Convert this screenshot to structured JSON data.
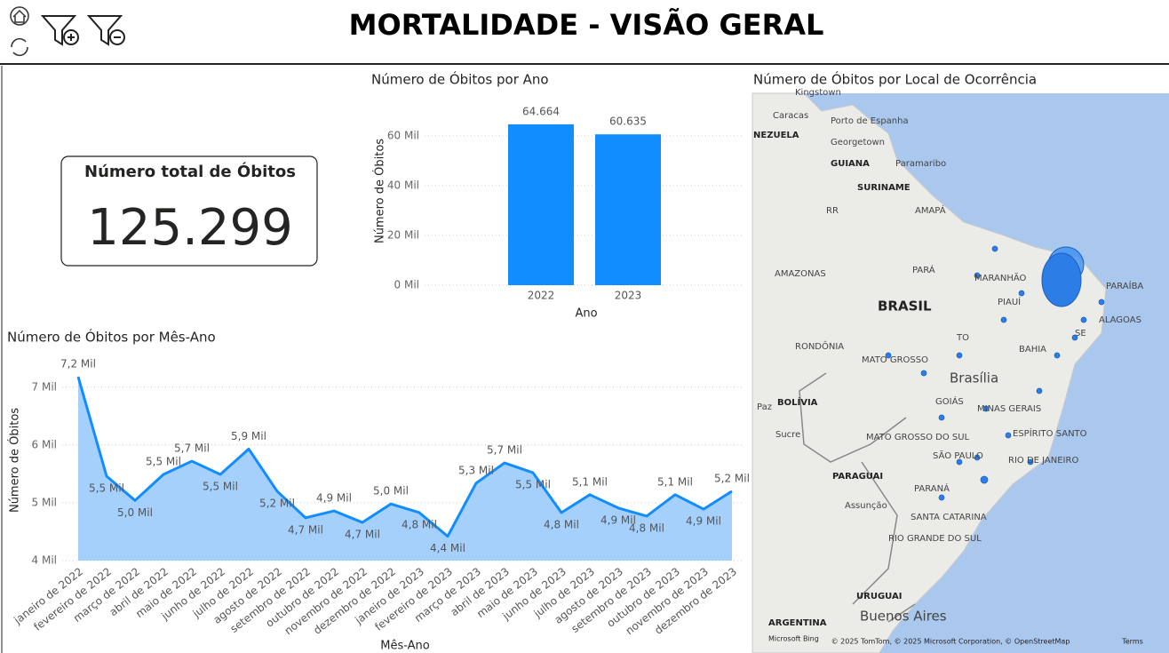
{
  "header": {
    "title": "MORTALIDADE - VISÃO GERAL"
  },
  "kpi": {
    "title": "Número total de Óbitos",
    "value": "125.299"
  },
  "chart_data": [
    {
      "type": "bar",
      "title": "Número de Óbitos por Ano",
      "x_label": "Ano",
      "y_label": "Número de Óbitos",
      "categories": [
        "2022",
        "2023"
      ],
      "values": [
        64664,
        60635
      ],
      "value_labels": [
        "64.664",
        "60.635"
      ],
      "color": "#118dff",
      "ylim": [
        0,
        70000
      ],
      "yticks": [
        {
          "value": 0,
          "label": "0 Mil"
        },
        {
          "value": 20000,
          "label": "20 Mil"
        },
        {
          "value": 40000,
          "label": "40 Mil"
        },
        {
          "value": 60000,
          "label": "60 Mil"
        }
      ],
      "grid": true
    },
    {
      "type": "line",
      "title": "Número de Óbitos por Mês-Ano",
      "x_label": "Mês-Ano",
      "y_label": "Número de Óbitos",
      "categories": [
        "janeiro de 2022",
        "fevereiro de 2022",
        "março de 2022",
        "abril de 2022",
        "maio de 2022",
        "junho de 2022",
        "julho de 2022",
        "agosto de 2022",
        "setembro de 2022",
        "outubro de 2022",
        "novembro de 2022",
        "dezembro de 2022",
        "janeiro de 2023",
        "fevereiro de 2023",
        "março de 2023",
        "abril de 2023",
        "maio de 2023",
        "junho de 2023",
        "julho de 2023",
        "agosto de 2023",
        "setembro de 2023",
        "outubro de 2023",
        "novembro de 2023",
        "dezembro de 2023"
      ],
      "values": [
        7180,
        5460,
        5040,
        5490,
        5720,
        5490,
        5930,
        5200,
        4740,
        4860,
        4660,
        4980,
        4830,
        4420,
        5340,
        5690,
        5520,
        4830,
        5140,
        4910,
        4770,
        5140,
        4890,
        5200
      ],
      "value_labels": [
        "7,2 Mil",
        "5,5 Mil",
        "5,0 Mil",
        "5,5 Mil",
        "5,7 Mil",
        "5,5 Mil",
        "5,9 Mil",
        "5,2 Mil",
        "4,7 Mil",
        "4,9 Mil",
        "4,7 Mil",
        "5,0 Mil",
        "4,8 Mil",
        "4,4 Mil",
        "5,3 Mil",
        "5,7 Mil",
        "5,5 Mil",
        "4,8 Mil",
        "5,1 Mil",
        "4,9 Mil",
        "4,8 Mil",
        "5,1 Mil",
        "4,9 Mil",
        "5,2 Mil"
      ],
      "color": "#118dff",
      "fill": "#a4d0fb",
      "ylim": [
        4000,
        7350
      ],
      "yticks": [
        {
          "value": 4000,
          "label": "4 Mil"
        },
        {
          "value": 5000,
          "label": "5 Mil"
        },
        {
          "value": 6000,
          "label": "6 Mil"
        },
        {
          "value": 7000,
          "label": "7 Mil"
        }
      ],
      "grid": true
    }
  ],
  "map": {
    "title": "Número de Óbitos por Local de Ocorrência",
    "labels": [
      "Kingstown",
      "Caracas",
      "Porto de Espanha",
      "NEZUELA",
      "Georgetown",
      "GUIANA",
      "Paramaribo",
      "SURINAME",
      "AMAPÁ",
      "RR",
      "AMAZONAS",
      "PARÁ",
      "BRASIL",
      "MARANHÃO",
      "PIAUÍ",
      "PARAÍBA",
      "ALAGOAS",
      "SE",
      "TO",
      "BAHIA",
      "RONDÔNIA",
      "MATO GROSSO",
      "Brasília",
      "GOIÁS",
      "MINAS GERAIS",
      "BOLÍVIA",
      "Paz",
      "Sucre",
      "MATO GROSSO DO SUL",
      "ESPÍRITO SANTO",
      "SÃO PAULO",
      "RIO DE JANEIRO",
      "PARAGUAI",
      "PARANÁ",
      "Assunção",
      "SANTA CATARINA",
      "RIO GRANDE DO SUL",
      "URUGUAI",
      "Buenos Aires",
      "ARGENTINA"
    ],
    "attribution": "© 2025 TomTom, © 2025 Microsoft Corporation, © OpenStreetMap",
    "terms": "Terms",
    "brand": "Microsoft Bing"
  }
}
